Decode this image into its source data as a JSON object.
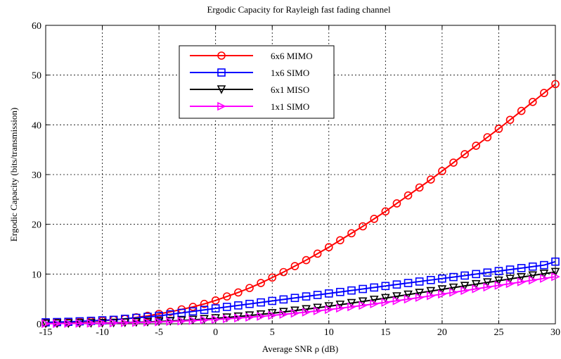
{
  "chart_data": {
    "type": "line",
    "title": "Ergodic Capacity for Rayleigh fast fading channel",
    "xlabel": "Average SNR ρ (dB)",
    "ylabel": "Ergodic Capacity (bits/transmission)",
    "xlim": [
      -15,
      30
    ],
    "ylim": [
      0,
      60
    ],
    "xticks": [
      -15,
      -10,
      -5,
      0,
      5,
      10,
      15,
      20,
      25,
      30
    ],
    "yticks": [
      0,
      10,
      20,
      30,
      40,
      50,
      60
    ],
    "grid": true,
    "legend_position": "top-left",
    "x": [
      -15,
      -14,
      -13,
      -12,
      -11,
      -10,
      -9,
      -8,
      -7,
      -6,
      -5,
      -4,
      -3,
      -2,
      -1,
      0,
      1,
      2,
      3,
      4,
      5,
      6,
      7,
      8,
      9,
      10,
      11,
      12,
      13,
      14,
      15,
      16,
      17,
      18,
      19,
      20,
      21,
      22,
      23,
      24,
      25,
      26,
      27,
      28,
      29,
      30
    ],
    "series": [
      {
        "name": "6x6 MIMO",
        "color": "#ff0000",
        "marker": "circle",
        "values": [
          0.2,
          0.25,
          0.3,
          0.4,
          0.5,
          0.6,
          0.8,
          1.0,
          1.3,
          1.6,
          2.0,
          2.4,
          2.9,
          3.4,
          4.0,
          4.7,
          5.5,
          6.3,
          7.2,
          8.2,
          9.3,
          10.4,
          11.6,
          12.8,
          14.1,
          15.4,
          16.8,
          18.2,
          19.6,
          21.1,
          22.6,
          24.2,
          25.8,
          27.4,
          29.0,
          30.7,
          32.4,
          34.1,
          35.8,
          37.5,
          39.2,
          41.0,
          42.8,
          44.6,
          46.4,
          48.2
        ]
      },
      {
        "name": "1x6 SIMO",
        "color": "#0000ff",
        "marker": "square",
        "values": [
          0.3,
          0.35,
          0.4,
          0.5,
          0.6,
          0.7,
          0.8,
          1.0,
          1.2,
          1.4,
          1.6,
          1.9,
          2.2,
          2.5,
          2.8,
          3.1,
          3.4,
          3.7,
          4.0,
          4.3,
          4.6,
          4.9,
          5.2,
          5.5,
          5.8,
          6.1,
          6.4,
          6.7,
          7.0,
          7.3,
          7.6,
          7.9,
          8.2,
          8.5,
          8.8,
          9.1,
          9.4,
          9.7,
          10.0,
          10.3,
          10.6,
          10.9,
          11.2,
          11.5,
          11.8,
          12.5
        ]
      },
      {
        "name": "6x1 MISO",
        "color": "#000000",
        "marker": "triangle-down",
        "values": [
          0.05,
          0.07,
          0.09,
          0.11,
          0.14,
          0.17,
          0.21,
          0.26,
          0.32,
          0.39,
          0.47,
          0.56,
          0.67,
          0.8,
          0.94,
          1.1,
          1.27,
          1.46,
          1.67,
          1.89,
          2.13,
          2.38,
          2.65,
          2.93,
          3.22,
          3.52,
          3.84,
          4.16,
          4.49,
          4.83,
          5.17,
          5.52,
          5.87,
          6.22,
          6.57,
          6.92,
          7.27,
          7.62,
          7.97,
          8.32,
          8.67,
          9.02,
          9.37,
          9.72,
          10.07,
          10.42
        ]
      },
      {
        "name": "1x1 SIMO",
        "color": "#ff00ff",
        "marker": "triangle-right",
        "values": [
          0.04,
          0.05,
          0.07,
          0.09,
          0.11,
          0.14,
          0.17,
          0.21,
          0.26,
          0.32,
          0.38,
          0.46,
          0.55,
          0.65,
          0.76,
          0.88,
          1.01,
          1.16,
          1.32,
          1.5,
          1.69,
          1.9,
          2.12,
          2.35,
          2.6,
          2.86,
          3.13,
          3.41,
          3.7,
          4.0,
          4.31,
          4.63,
          4.96,
          5.29,
          5.63,
          5.97,
          6.32,
          6.67,
          7.02,
          7.37,
          7.72,
          8.07,
          8.42,
          8.77,
          9.12,
          9.47
        ]
      }
    ]
  }
}
